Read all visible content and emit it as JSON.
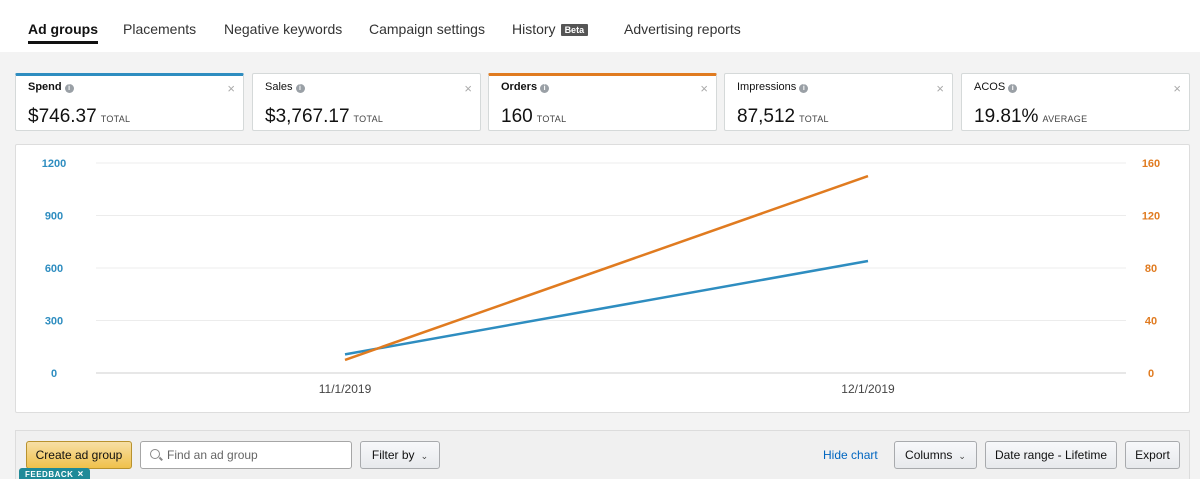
{
  "tabs": [
    {
      "label": "Ad groups",
      "active": true
    },
    {
      "label": "Placements"
    },
    {
      "label": "Negative keywords"
    },
    {
      "label": "Campaign settings"
    },
    {
      "label": "History",
      "badge": "Beta"
    },
    {
      "label": "Advertising reports"
    }
  ],
  "metrics": [
    {
      "name": "Spend",
      "value": "$746.37",
      "unit": "TOTAL",
      "selected_color": "#2e8dc0"
    },
    {
      "name": "Sales",
      "value": "$3,767.17",
      "unit": "TOTAL"
    },
    {
      "name": "Orders",
      "value": "160",
      "unit": "TOTAL",
      "selected_color": "#e07b20"
    },
    {
      "name": "Impressions",
      "value": "87,512",
      "unit": "TOTAL"
    },
    {
      "name": "ACOS",
      "value": "19.81%",
      "unit": "AVERAGE"
    }
  ],
  "icons": {
    "info": "info-circle-icon",
    "close": "close-icon",
    "search": "search-icon",
    "chevron": "chevron-down-icon"
  },
  "glyphs": {
    "info": "i",
    "close": "×",
    "chevron": "⌄"
  },
  "chart_data": {
    "type": "line",
    "x": [
      "11/1/2019",
      "12/1/2019"
    ],
    "series": [
      {
        "name": "Spend",
        "axis": "left",
        "color": "#2e8dc0",
        "values": [
          106,
          640
        ]
      },
      {
        "name": "Orders",
        "axis": "right",
        "color": "#e07b20",
        "values": [
          10,
          150
        ]
      }
    ],
    "y_left": {
      "ticks": [
        "0",
        "300",
        "600",
        "900",
        "1200"
      ],
      "ylim": [
        0,
        1200
      ],
      "color": "#2e8dc0"
    },
    "y_right": {
      "ticks": [
        "0",
        "40",
        "80",
        "120",
        "160"
      ],
      "ylim": [
        0,
        160
      ],
      "color": "#e07b20"
    },
    "grid": true,
    "legend": "none"
  },
  "toolbar": {
    "create_label": "Create ad group",
    "search_placeholder": "Find an ad group",
    "filter_label": "Filter by",
    "hide_chart_label": "Hide chart",
    "columns_label": "Columns",
    "date_range_label": "Date range - Lifetime",
    "export_label": "Export"
  },
  "feedback": {
    "label": "FEEDBACK",
    "close": "×"
  }
}
